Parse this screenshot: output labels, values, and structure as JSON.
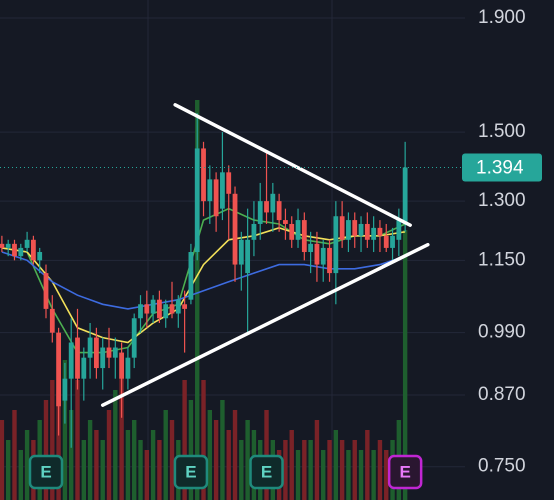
{
  "chart_data": {
    "type": "candlestick",
    "log_scale": true,
    "ylim": [
      0.7,
      1.972
    ],
    "yticks": [
      {
        "value": 1.9,
        "label": "1.900"
      },
      {
        "value": 1.5,
        "label": "1.500"
      },
      {
        "value": 1.3,
        "label": "1.300"
      },
      {
        "value": 1.15,
        "label": "1.150"
      },
      {
        "value": 0.99,
        "label": "0.990"
      },
      {
        "value": 0.87,
        "label": "0.870"
      },
      {
        "value": 0.75,
        "label": "0.750"
      }
    ],
    "grid": true,
    "xlim": [
      -0.3,
      73.5
    ],
    "up_color": "#26a69a",
    "down_color": "#ef5350",
    "candles": [
      [
        1.19,
        1.21,
        1.17,
        1.18
      ],
      [
        1.18,
        1.2,
        1.16,
        1.19
      ],
      [
        1.19,
        1.2,
        1.15,
        1.16
      ],
      [
        1.16,
        1.19,
        1.15,
        1.18
      ],
      [
        1.18,
        1.22,
        1.17,
        1.2
      ],
      [
        1.2,
        1.21,
        1.14,
        1.15
      ],
      [
        1.15,
        1.18,
        1.12,
        1.17
      ],
      [
        1.12,
        1.14,
        1.02,
        1.04
      ],
      [
        1.04,
        1.07,
        0.97,
        0.99
      ],
      [
        0.99,
        1.0,
        0.8,
        0.85
      ],
      [
        0.86,
        0.93,
        0.82,
        0.9
      ],
      [
        0.9,
        1.02,
        0.78,
        0.97
      ],
      [
        0.98,
        1.04,
        0.88,
        0.9
      ],
      [
        0.9,
        0.96,
        0.86,
        0.94
      ],
      [
        0.94,
        1.01,
        0.9,
        0.98
      ],
      [
        0.98,
        1.0,
        0.9,
        0.92
      ],
      [
        0.92,
        0.98,
        0.88,
        0.96
      ],
      [
        0.96,
        1.0,
        0.92,
        0.94
      ],
      [
        0.94,
        0.98,
        0.9,
        0.96
      ],
      [
        0.95,
        0.97,
        0.83,
        0.9
      ],
      [
        0.9,
        0.96,
        0.88,
        0.94
      ],
      [
        0.94,
        1.03,
        0.92,
        1.02
      ],
      [
        1.02,
        1.07,
        0.99,
        1.05
      ],
      [
        1.05,
        1.08,
        1.0,
        1.03
      ],
      [
        1.03,
        1.07,
        1.01,
        1.06
      ],
      [
        1.06,
        1.08,
        1.01,
        1.02
      ],
      [
        1.02,
        1.06,
        1.0,
        1.05
      ],
      [
        1.05,
        1.1,
        1.02,
        1.03
      ],
      [
        1.03,
        1.07,
        1.0,
        1.06
      ],
      [
        1.05,
        1.08,
        0.95,
        1.04
      ],
      [
        1.06,
        1.19,
        1.05,
        1.17
      ],
      [
        1.17,
        1.56,
        1.15,
        1.45
      ],
      [
        1.45,
        1.47,
        1.26,
        1.3
      ],
      [
        1.3,
        1.4,
        1.24,
        1.36
      ],
      [
        1.36,
        1.38,
        1.22,
        1.26
      ],
      [
        1.28,
        1.5,
        1.25,
        1.38
      ],
      [
        1.38,
        1.4,
        1.2,
        1.32
      ],
      [
        1.32,
        1.34,
        1.1,
        1.14
      ],
      [
        1.14,
        1.22,
        1.08,
        1.2
      ],
      [
        1.12,
        1.28,
        0.99,
        1.2
      ],
      [
        1.2,
        1.3,
        1.16,
        1.24
      ],
      [
        1.24,
        1.35,
        1.2,
        1.3
      ],
      [
        1.3,
        1.44,
        1.24,
        1.27
      ],
      [
        1.27,
        1.35,
        1.22,
        1.32
      ],
      [
        1.3,
        1.32,
        1.22,
        1.25
      ],
      [
        1.25,
        1.28,
        1.2,
        1.24
      ],
      [
        1.24,
        1.26,
        1.18,
        1.2
      ],
      [
        1.2,
        1.28,
        1.18,
        1.25
      ],
      [
        1.25,
        1.27,
        1.15,
        1.17
      ],
      [
        1.17,
        1.22,
        1.12,
        1.19
      ],
      [
        1.19,
        1.22,
        1.1,
        1.14
      ],
      [
        1.14,
        1.2,
        1.1,
        1.18
      ],
      [
        1.18,
        1.2,
        1.1,
        1.12
      ],
      [
        1.12,
        1.3,
        1.05,
        1.26
      ],
      [
        1.26,
        1.3,
        1.18,
        1.2
      ],
      [
        1.2,
        1.27,
        1.17,
        1.25
      ],
      [
        1.25,
        1.27,
        1.18,
        1.21
      ],
      [
        1.21,
        1.26,
        1.17,
        1.24
      ],
      [
        1.24,
        1.27,
        1.18,
        1.2
      ],
      [
        1.2,
        1.26,
        1.17,
        1.23
      ],
      [
        1.23,
        1.25,
        1.17,
        1.21
      ],
      [
        1.21,
        1.24,
        1.17,
        1.18
      ],
      [
        1.18,
        1.23,
        1.15,
        1.21
      ],
      [
        1.2,
        1.28,
        1.16,
        1.25
      ],
      [
        1.24,
        1.47,
        1.22,
        1.394
      ]
    ],
    "volume_lim": [
      0,
      250
    ],
    "volume": [
      40,
      30,
      45,
      25,
      35,
      30,
      40,
      50,
      60,
      55,
      70,
      45,
      60,
      30,
      40,
      35,
      30,
      45,
      55,
      65,
      35,
      40,
      30,
      25,
      35,
      30,
      45,
      40,
      30,
      60,
      50,
      200,
      60,
      45,
      40,
      50,
      35,
      45,
      30,
      40,
      35,
      30,
      45,
      30,
      25,
      30,
      35,
      25,
      30,
      30,
      40,
      25,
      30,
      35,
      30,
      25,
      30,
      25,
      35,
      25,
      30,
      25,
      30,
      40,
      135
    ],
    "moving_averages": [
      {
        "color": "#4caf50",
        "x": [
          0,
          4,
          8,
          12,
          16,
          20,
          24,
          28,
          32,
          36,
          40,
          44,
          48,
          52,
          56,
          60,
          64
        ],
        "values": [
          1.18,
          1.17,
          1.04,
          0.95,
          0.95,
          0.96,
          1.03,
          1.05,
          1.25,
          1.28,
          1.25,
          1.24,
          1.2,
          1.19,
          1.21,
          1.21,
          1.24
        ]
      },
      {
        "color": "#f2e05a",
        "x": [
          0,
          4,
          8,
          12,
          16,
          20,
          24,
          28,
          32,
          36,
          40,
          44,
          48,
          52,
          56,
          60,
          64
        ],
        "values": [
          1.18,
          1.17,
          1.1,
          1.0,
          0.98,
          0.97,
          1.01,
          1.04,
          1.14,
          1.2,
          1.21,
          1.23,
          1.21,
          1.2,
          1.21,
          1.21,
          1.22
        ]
      },
      {
        "color": "#3d6be0",
        "x": [
          0,
          4,
          8,
          12,
          16,
          20,
          24,
          28,
          32,
          36,
          40,
          44,
          48,
          52,
          56,
          60,
          64
        ],
        "values": [
          1.17,
          1.15,
          1.1,
          1.07,
          1.05,
          1.04,
          1.05,
          1.06,
          1.08,
          1.1,
          1.12,
          1.14,
          1.14,
          1.13,
          1.13,
          1.14,
          1.16
        ]
      }
    ],
    "trendlines": [
      {
        "x": [
          27.5,
          64.8
        ],
        "values": [
          1.587,
          1.237
        ]
      },
      {
        "x": [
          16.0,
          67.6
        ],
        "values": [
          0.852,
          1.188
        ]
      }
    ],
    "last_price": 1.394,
    "earnings": [
      {
        "x": 7,
        "label": "E"
      },
      {
        "x": 30,
        "label": "E"
      },
      {
        "x": 42,
        "label": "E"
      },
      {
        "x": 64,
        "label": "E"
      }
    ]
  }
}
